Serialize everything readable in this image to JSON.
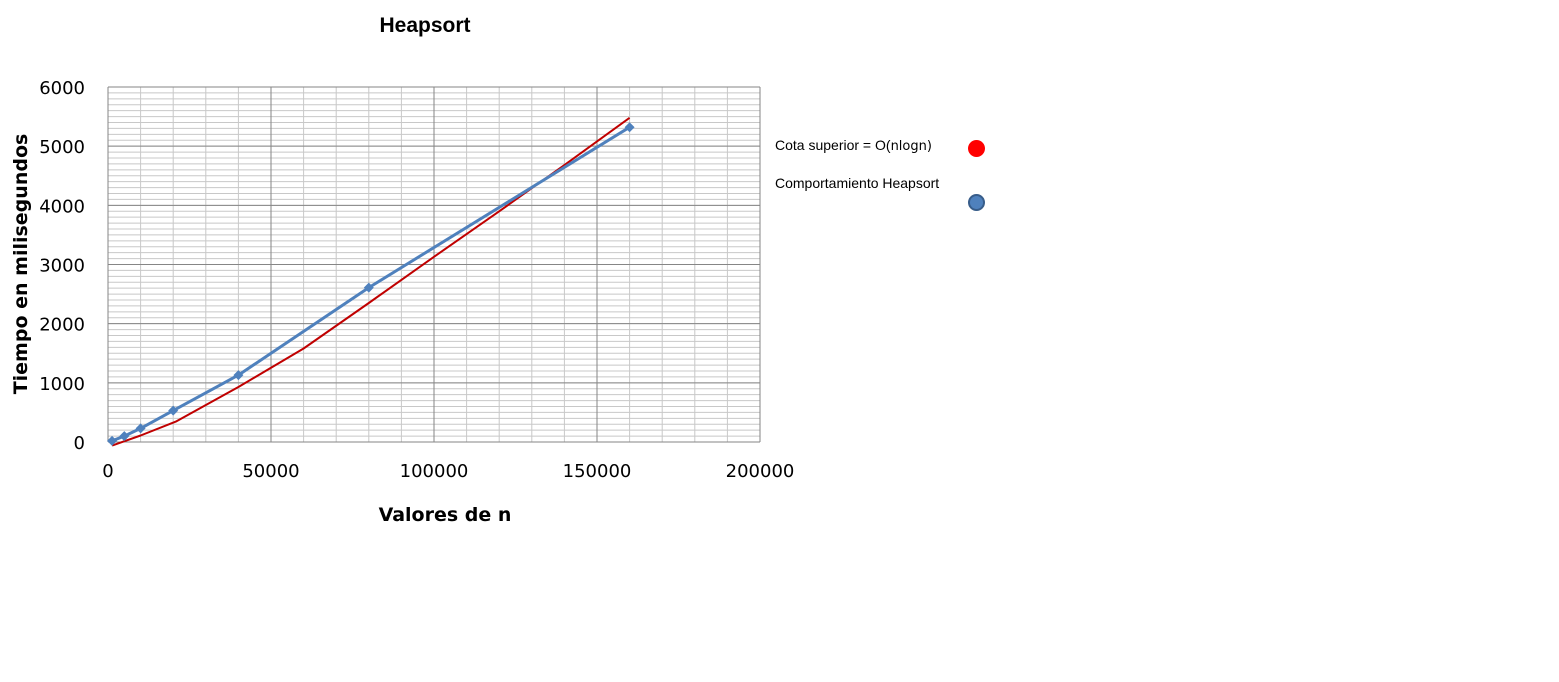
{
  "chart_data": {
    "type": "line",
    "title": "Heapsort",
    "xlabel": "Valores de n",
    "ylabel": "Tiempo en milisegundos",
    "xlim": [
      0,
      200000
    ],
    "ylim": [
      0,
      6000
    ],
    "xticks": [
      0,
      50000,
      100000,
      150000,
      200000
    ],
    "yticks": [
      0,
      1000,
      2000,
      3000,
      4000,
      5000,
      6000
    ],
    "grid": true,
    "legend_position": "right",
    "series": [
      {
        "name": "Cota superior = O(nlogn)",
        "name_main": "Cota superior = O(",
        "name_small": "nlogn)",
        "color": "#c00000",
        "legend_color": "#ff0000",
        "marker": "none",
        "x": [
          1250,
          10000,
          21000,
          40000,
          60000,
          80000,
          100000,
          120000,
          140000,
          160000
        ],
        "y": [
          -60,
          110,
          350,
          930,
          1580,
          2350,
          3130,
          3900,
          4680,
          5480
        ]
      },
      {
        "name": "Comportamiento Heapsort",
        "color": "#4f81bd",
        "legend_color": "#4f81bd",
        "marker": "diamond",
        "x": [
          1250,
          5000,
          10000,
          20000,
          40000,
          80000,
          160000
        ],
        "y": [
          20,
          100,
          230,
          530,
          1130,
          2610,
          5320
        ]
      }
    ]
  }
}
